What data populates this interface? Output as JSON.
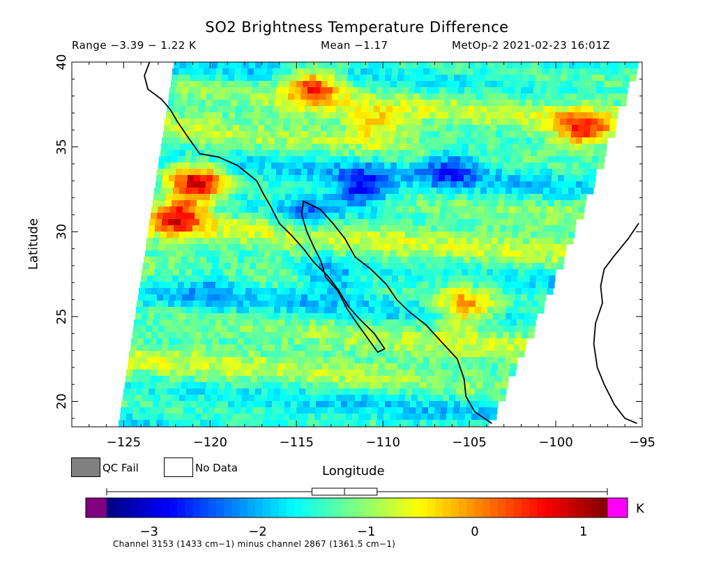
{
  "header": {
    "title": "SO2 Brightness Temperature Difference",
    "range_text": "Range −3.39 − 1.22 K",
    "mean_text": "Mean −1.17",
    "satellite_text": "MetOp-2 2021-02-23 16:01Z"
  },
  "axes": {
    "xlabel": "Longitude",
    "ylabel": "Latitude",
    "x_range": [
      -128,
      -95
    ],
    "y_range": [
      18.5,
      40
    ],
    "x_ticks": [
      -125,
      -120,
      -115,
      -110,
      -105,
      -100,
      -95
    ],
    "x_tick_labels": [
      "−125",
      "−120",
      "−115",
      "−110",
      "−105",
      "−100",
      "−95"
    ],
    "y_ticks": [
      20,
      25,
      30,
      35,
      40
    ],
    "y_tick_labels": [
      "20",
      "25",
      "30",
      "35",
      "40"
    ]
  },
  "legend": {
    "qc_fail_label": "QC Fail",
    "qc_fail_color": "#808080",
    "no_data_label": "No Data",
    "no_data_color": "#ffffff"
  },
  "colorbar": {
    "unit": "K",
    "min": -3.39,
    "max": 1.22,
    "under_color": "#800080",
    "over_color": "#ff00ff",
    "ticks": [
      -3,
      -2,
      -1,
      0,
      1
    ],
    "tick_labels": [
      "−3",
      "−2",
      "−1",
      "0",
      "1"
    ],
    "stats": {
      "whisker_min": -3.39,
      "q1": -1.5,
      "median": -1.2,
      "q3": -0.9,
      "whisker_max": 1.22
    },
    "colormap": "jet"
  },
  "footnote": "Channel 3153 (1433 cm−1) minus channel 2867 (1361.5 cm−1)",
  "chart_data": {
    "type": "heatmap",
    "title": "SO2 Brightness Temperature Difference",
    "xlabel": "Longitude",
    "ylabel": "Latitude",
    "xlim": [
      -128,
      -95
    ],
    "ylim": [
      18.5,
      40
    ],
    "value_range": [
      -3.39,
      1.22
    ],
    "mean": -1.17,
    "unit": "K",
    "background_mean": -1.3,
    "features": [
      {
        "lon": -120.8,
        "lat": 32.9,
        "value": 0.9
      },
      {
        "lon": -121.8,
        "lat": 31.0,
        "value": 0.5
      },
      {
        "lon": -111.2,
        "lat": 32.5,
        "value": -2.6
      },
      {
        "lon": -106.0,
        "lat": 33.8,
        "value": -2.3
      },
      {
        "lon": -114.3,
        "lat": 31.2,
        "value": -2.1
      },
      {
        "lon": -113.0,
        "lat": 27.3,
        "value": -2.0
      },
      {
        "lon": -114.0,
        "lat": 38.6,
        "value": 0.4
      },
      {
        "lon": -98.5,
        "lat": 36.0,
        "value": 0.2
      },
      {
        "lon": -105.3,
        "lat": 25.6,
        "value": 0.2
      },
      {
        "lon": -110.5,
        "lat": 36.2,
        "value": -0.5
      },
      {
        "lon": -120.0,
        "lat": 27.0,
        "value": -1.7
      }
    ]
  }
}
